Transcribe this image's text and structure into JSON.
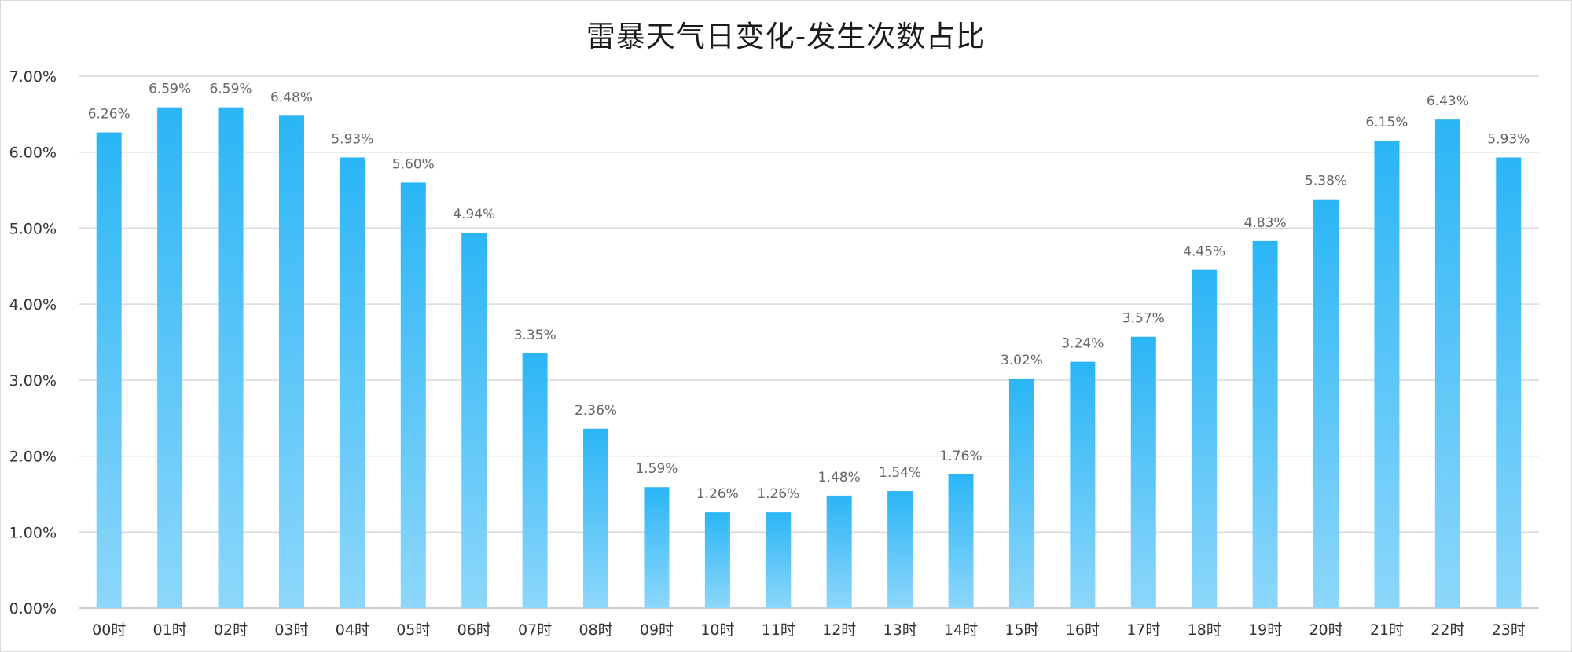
{
  "chart_data": {
    "type": "bar",
    "title": "雷暴天气日变化-发生次数占比",
    "xlabel": "",
    "ylabel": "",
    "categories": [
      "00时",
      "01时",
      "02时",
      "03时",
      "04时",
      "05时",
      "06时",
      "07时",
      "08时",
      "09时",
      "10时",
      "11时",
      "12时",
      "13时",
      "14时",
      "15时",
      "16时",
      "17时",
      "18时",
      "19时",
      "20时",
      "21时",
      "22时",
      "23时"
    ],
    "values": [
      6.26,
      6.59,
      6.59,
      6.48,
      5.93,
      5.6,
      4.94,
      3.35,
      2.36,
      1.59,
      1.26,
      1.26,
      1.48,
      1.54,
      1.76,
      3.02,
      3.24,
      3.57,
      4.45,
      4.83,
      5.38,
      6.15,
      6.43,
      5.93
    ],
    "data_labels": [
      "6.26%",
      "6.59%",
      "6.59%",
      "6.48%",
      "5.93%",
      "5.60%",
      "4.94%",
      "3.35%",
      "2.36%",
      "1.59%",
      "1.26%",
      "1.26%",
      "1.48%",
      "1.54%",
      "1.76%",
      "3.02%",
      "3.24%",
      "3.57%",
      "4.45%",
      "4.83%",
      "5.38%",
      "6.15%",
      "6.43%",
      "5.93%"
    ],
    "y_ticks": [
      0,
      1,
      2,
      3,
      4,
      5,
      6,
      7
    ],
    "y_tick_labels": [
      "0.00%",
      "1.00%",
      "2.00%",
      "3.00%",
      "4.00%",
      "5.00%",
      "6.00%",
      "7.00%"
    ],
    "ylim": [
      0,
      7
    ],
    "grid": true,
    "legend": "none",
    "colors": {
      "bar_top": "#2bb5f5",
      "bar_bottom": "#8dd7fb",
      "grid": "#d9d9d9",
      "axis": "#bfbfbf"
    }
  }
}
